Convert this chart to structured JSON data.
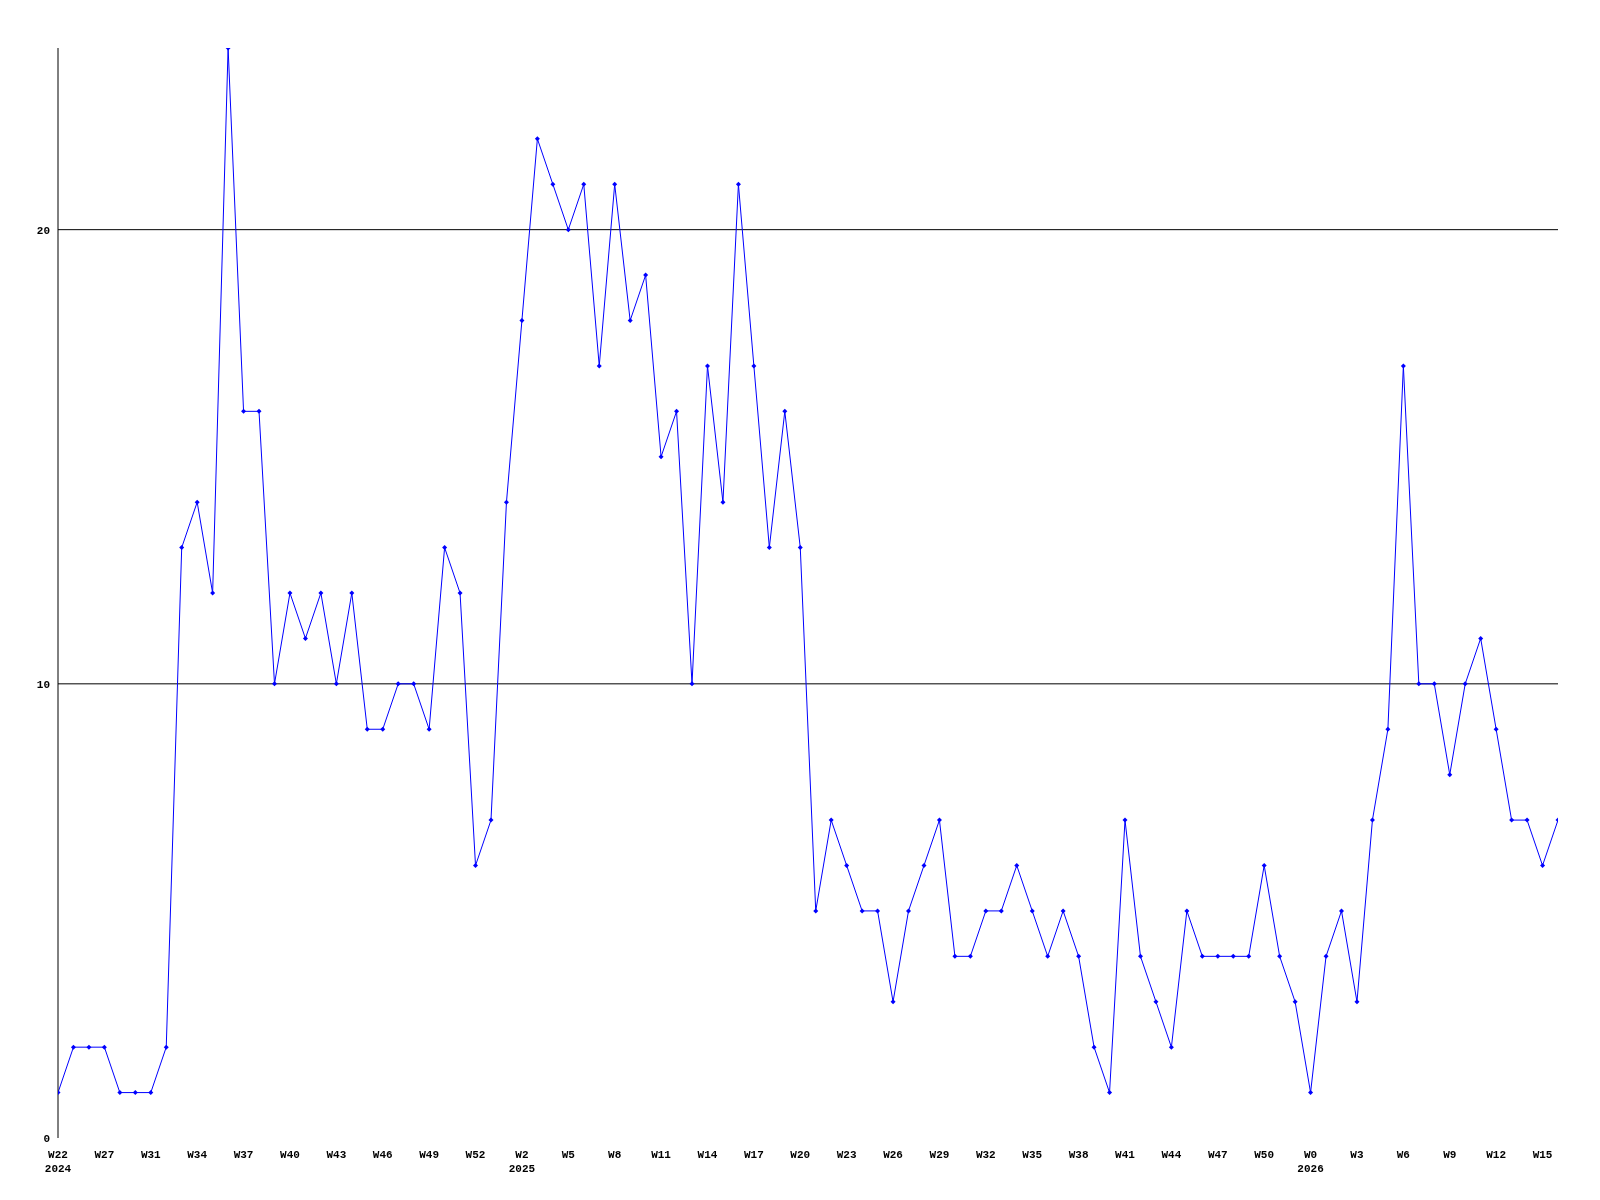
{
  "chart_data": {
    "type": "line",
    "categories": [
      "W22\n2024",
      null,
      null,
      "W27",
      null,
      null,
      "W31",
      null,
      null,
      "W34",
      null,
      null,
      "W37",
      null,
      null,
      "W40",
      null,
      null,
      "W43",
      null,
      null,
      "W46",
      null,
      null,
      "W49",
      null,
      null,
      "W52",
      null,
      null,
      "W2\n2025",
      null,
      null,
      "W5",
      null,
      null,
      "W8",
      null,
      null,
      "W11",
      null,
      null,
      "W14",
      null,
      null,
      "W17",
      null,
      null,
      "W20",
      null,
      null,
      "W23",
      null,
      null,
      "W26",
      null,
      null,
      "W29",
      null,
      null,
      "W32",
      null,
      null,
      "W35",
      null,
      null,
      "W38",
      null,
      null,
      "W41",
      null,
      null,
      "W44",
      null,
      null,
      "W47",
      null,
      null,
      "W50",
      null,
      null,
      "W0\n2026",
      null,
      null,
      "W3",
      null,
      null,
      "W6",
      null,
      null,
      "W9",
      null,
      null,
      "W12",
      null,
      null,
      "W15",
      null
    ],
    "series": [
      {
        "color": "#0000ff",
        "values": [
          1,
          2,
          2,
          2,
          1,
          1,
          1,
          2,
          13,
          14,
          12,
          24,
          16,
          16,
          10,
          12,
          11,
          12,
          10,
          12,
          9,
          9,
          10,
          10,
          9,
          13,
          12,
          6,
          7,
          14,
          18,
          22,
          21,
          20,
          21,
          17,
          21,
          18,
          19,
          15,
          16,
          10,
          17,
          14,
          21,
          17,
          13,
          16,
          13,
          5,
          7,
          6,
          5,
          5,
          3,
          5,
          6,
          7,
          4,
          4,
          5,
          5,
          6,
          5,
          4,
          5,
          4,
          2,
          1,
          7,
          4,
          3,
          2,
          5,
          4,
          4,
          4,
          4,
          6,
          4,
          3,
          1,
          4,
          5,
          3,
          7,
          9,
          17,
          10,
          10,
          8,
          10,
          11,
          9,
          7,
          7,
          6,
          7
        ]
      }
    ],
    "ylim": [
      0,
      24
    ],
    "yticks": [
      0,
      10,
      20
    ],
    "grid": "y",
    "marker": "diamond",
    "line_style": "solid"
  }
}
